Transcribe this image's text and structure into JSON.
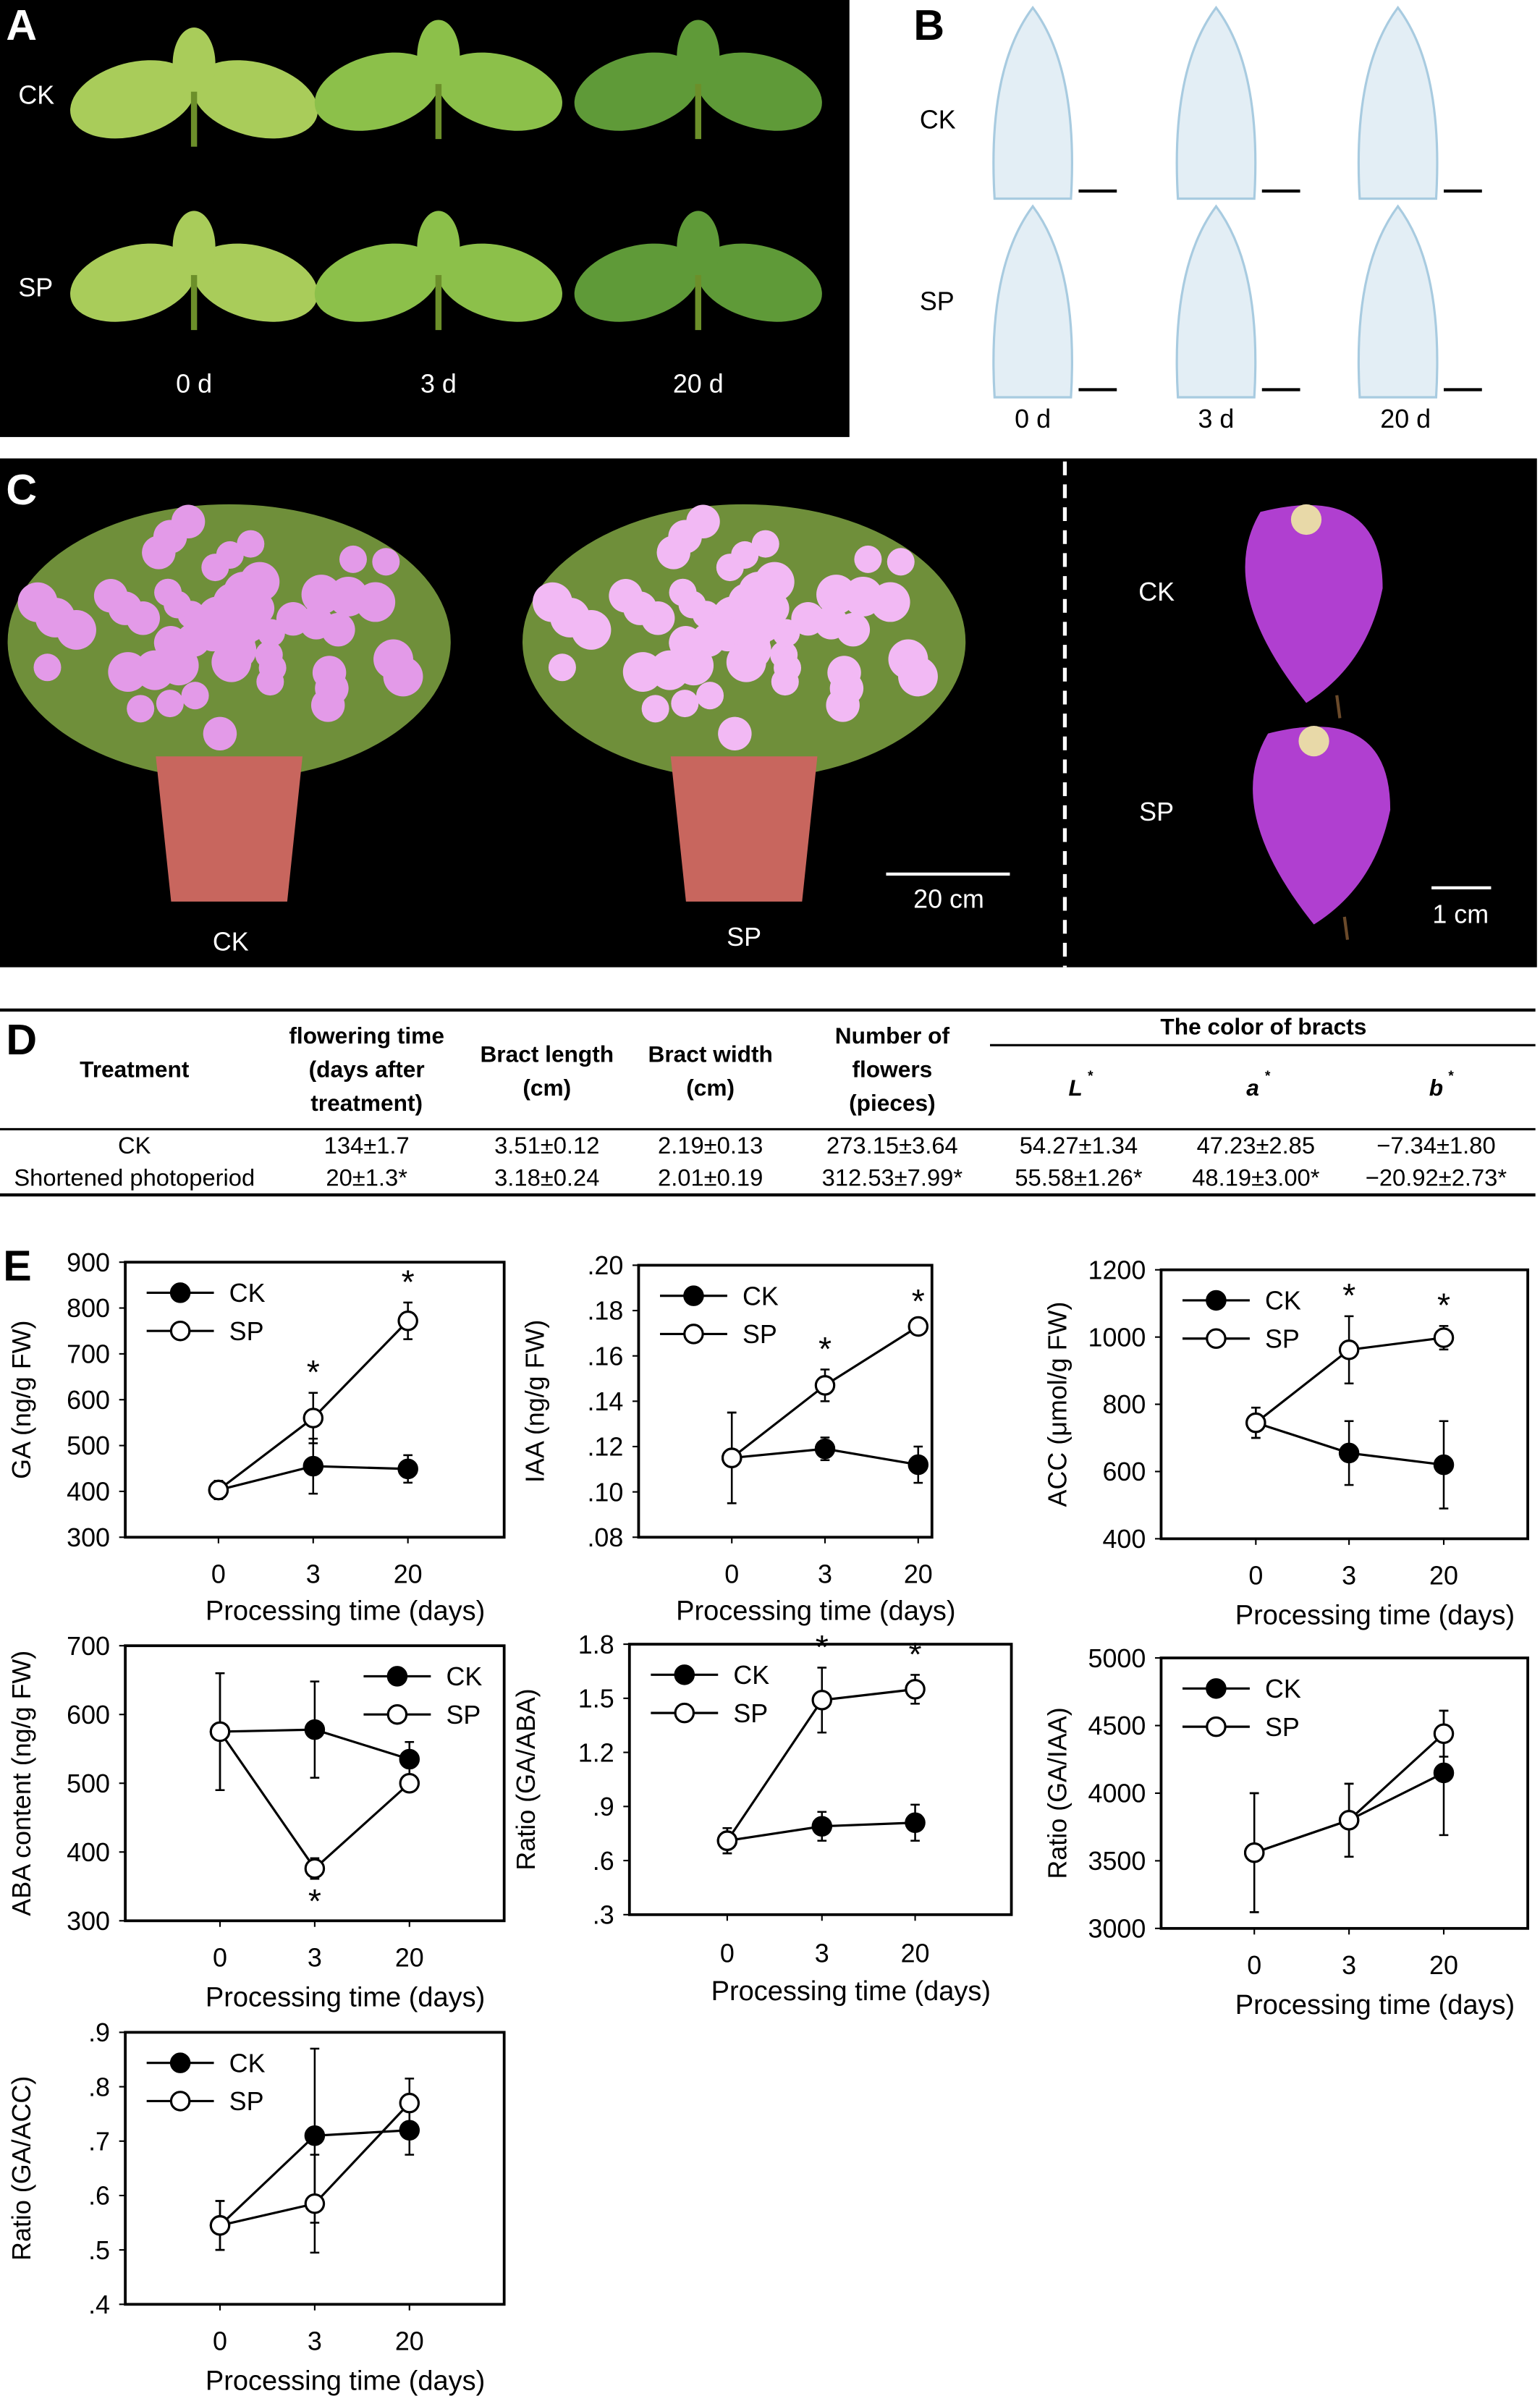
{
  "panels": {
    "a": "A",
    "b": "B",
    "c": "C",
    "d": "D",
    "e": "E"
  },
  "panel_a": {
    "rows": [
      "CK",
      "SP"
    ],
    "days": [
      "0 d",
      "3 d",
      "20 d"
    ]
  },
  "panel_b": {
    "rows": [
      "CK",
      "SP"
    ],
    "days": [
      "0 d",
      "3 d",
      "20 d"
    ]
  },
  "panel_c": {
    "plant_labels": [
      "CK",
      "SP"
    ],
    "scale_plant": "20 cm",
    "bract_labels": [
      "CK",
      "SP"
    ],
    "scale_bract": "1 cm"
  },
  "table": {
    "headers": {
      "treatment": "Treatment",
      "flowering": [
        "flowering time",
        "(days after",
        "treatment)"
      ],
      "bract_length": [
        "Bract length",
        "(cm)"
      ],
      "bract_width": [
        "Bract width",
        "(cm)"
      ],
      "flowers": [
        "Number of",
        "flowers",
        "(pieces)"
      ],
      "color_group": "The color of bracts",
      "L": "L",
      "a": "a",
      "b": "b",
      "sup": "*"
    },
    "rows": [
      [
        "CK",
        "134±1.7",
        "3.51±0.12",
        "2.19±0.13",
        "273.15±3.64",
        "54.27±1.34",
        "47.23±2.85",
        "−7.34±1.80"
      ],
      [
        "Shortened photoperiod",
        "20±1.3*",
        "3.18±0.24",
        "2.01±0.19",
        "312.53±7.99*",
        "55.58±1.26*",
        "48.19±3.00*",
        "−20.92±2.73*"
      ]
    ]
  },
  "chart_data": [
    {
      "type": "line",
      "ylabel": "GA (ng/g FW)",
      "xlabel": "Processing time (days)",
      "categories": [
        "0",
        "3",
        "20"
      ],
      "ylim": [
        300,
        900
      ],
      "yticks": [
        "300",
        "400",
        "500",
        "600",
        "700",
        "800",
        "900"
      ],
      "legend": "top-left",
      "series": [
        {
          "name": "CK",
          "values": [
            403,
            455,
            449
          ],
          "errors": [
            20,
            60,
            30
          ]
        },
        {
          "name": "SP",
          "values": [
            403,
            560,
            772
          ],
          "errors": [
            20,
            55,
            40
          ],
          "significant": [
            false,
            true,
            true
          ]
        }
      ]
    },
    {
      "type": "line",
      "ylabel": "IAA (ng/g FW)",
      "xlabel": "Processing time (days)",
      "categories": [
        "0",
        "3",
        "20"
      ],
      "ylim": [
        0.08,
        0.2
      ],
      "yticks": [
        ".08",
        ".10",
        ".12",
        ".14",
        ".16",
        ".18",
        ".20"
      ],
      "legend": "top-left",
      "series": [
        {
          "name": "CK",
          "values": [
            0.115,
            0.119,
            0.112
          ],
          "errors": [
            0.02,
            0.005,
            0.008
          ]
        },
        {
          "name": "SP",
          "values": [
            0.115,
            0.147,
            0.173
          ],
          "errors": [
            0.02,
            0.007,
            0.002
          ],
          "significant": [
            false,
            true,
            true
          ]
        }
      ]
    },
    {
      "type": "line",
      "ylabel": "ACC (μmol/g FW)",
      "xlabel": "Processing time (days)",
      "categories": [
        "0",
        "3",
        "20"
      ],
      "ylim": [
        400,
        1200
      ],
      "yticks": [
        "400",
        "600",
        "800",
        "1000",
        "1200"
      ],
      "legend": "top-left",
      "series": [
        {
          "name": "CK",
          "values": [
            745,
            655,
            620
          ],
          "errors": [
            45,
            95,
            130
          ]
        },
        {
          "name": "SP",
          "values": [
            745,
            962,
            998
          ],
          "errors": [
            45,
            100,
            35
          ],
          "significant": [
            false,
            true,
            true
          ]
        }
      ]
    },
    {
      "type": "line",
      "ylabel": "ABA content (ng/g FW)",
      "xlabel": "Processing time (days)",
      "categories": [
        "0",
        "3",
        "20"
      ],
      "ylim": [
        300,
        700
      ],
      "yticks": [
        "300",
        "400",
        "500",
        "600",
        "700"
      ],
      "legend": "top-right",
      "series": [
        {
          "name": "CK",
          "values": [
            575,
            578,
            535
          ],
          "errors": [
            85,
            70,
            25
          ]
        },
        {
          "name": "SP",
          "values": [
            575,
            376,
            500
          ],
          "errors": [
            85,
            15,
            10
          ],
          "significant": [
            false,
            true,
            false
          ]
        }
      ]
    },
    {
      "type": "line",
      "ylabel": "Ratio (GA/ABA)",
      "xlabel": "Processing time (days)",
      "categories": [
        "0",
        "3",
        "20"
      ],
      "ylim": [
        0.3,
        1.8
      ],
      "yticks": [
        ".3",
        ".6",
        ".9",
        "1.2",
        "1.5",
        "1.8"
      ],
      "legend": "top-left",
      "series": [
        {
          "name": "CK",
          "values": [
            0.71,
            0.79,
            0.81
          ],
          "errors": [
            0.07,
            0.08,
            0.1
          ]
        },
        {
          "name": "SP",
          "values": [
            0.71,
            1.49,
            1.55
          ],
          "errors": [
            0.07,
            0.18,
            0.08
          ],
          "significant": [
            false,
            true,
            true
          ]
        }
      ]
    },
    {
      "type": "line",
      "ylabel": "Ratio (GA/IAA)",
      "xlabel": "Processing time (days)",
      "categories": [
        "0",
        "3",
        "20"
      ],
      "ylim": [
        3000,
        5000
      ],
      "yticks": [
        "3000",
        "3500",
        "4000",
        "4500",
        "5000"
      ],
      "legend": "top-left",
      "series": [
        {
          "name": "CK",
          "values": [
            3560,
            3800,
            4150
          ],
          "errors": [
            440,
            270,
            460
          ]
        },
        {
          "name": "SP",
          "values": [
            3560,
            3800,
            4440
          ],
          "errors": [
            440,
            270,
            170
          ]
        }
      ]
    },
    {
      "type": "line",
      "ylabel": "Ratio (GA/ACC)",
      "xlabel": "Processing time (days)",
      "categories": [
        "0",
        "3",
        "20"
      ],
      "ylim": [
        0.4,
        0.9
      ],
      "yticks": [
        ".4",
        ".5",
        ".6",
        ".7",
        ".8",
        ".9"
      ],
      "legend": "top-left",
      "series": [
        {
          "name": "CK",
          "values": [
            0.545,
            0.71,
            0.72
          ],
          "errors": [
            0.045,
            0.16,
            0.045
          ]
        },
        {
          "name": "SP",
          "values": [
            0.545,
            0.585,
            0.77
          ],
          "errors": [
            0.045,
            0.09,
            0.045
          ]
        }
      ]
    }
  ],
  "significance_mark": "*",
  "colors": {
    "background_photo": "#000000",
    "leaf": "#7fb43a",
    "bract": "#b03fd0",
    "flower_pink": "#e9a4ee",
    "pot": "#c8665e",
    "section_blue": "#a8cbe0"
  }
}
